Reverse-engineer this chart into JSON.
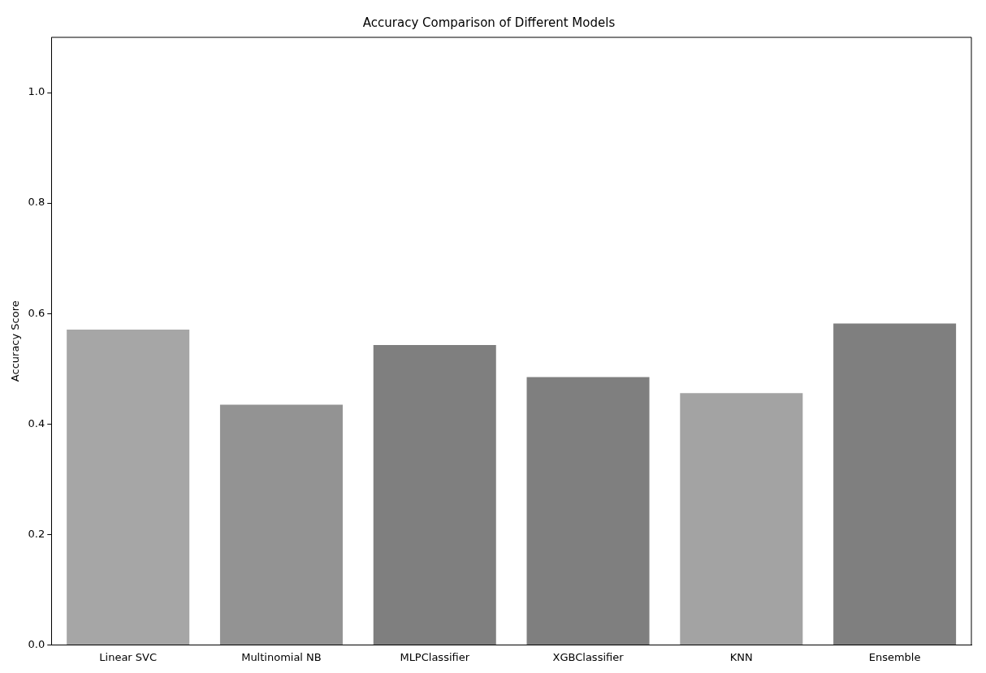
{
  "chart_data": {
    "type": "bar",
    "title": "Accuracy Comparison of Different Models",
    "ylabel": "Accuracy Score",
    "categories": [
      "Linear SVC",
      "Multinomial NB",
      "MLPClassifier",
      "XGBClassifier",
      "KNN",
      "Ensemble"
    ],
    "values": [
      0.571,
      0.435,
      0.543,
      0.485,
      0.456,
      0.582
    ],
    "colors": [
      "#a6a6a6",
      "#939393",
      "#7f7f7f",
      "#7f7f7f",
      "#a3a3a3",
      "#7f7f7f"
    ],
    "ylim": [
      0,
      1.1
    ],
    "yticks": [
      {
        "value": 0,
        "label": "0.0"
      },
      0.2,
      0.4,
      0.6,
      0.8,
      {
        "value": 1,
        "label": "1.0"
      }
    ],
    "grid": false,
    "legend": false
  }
}
